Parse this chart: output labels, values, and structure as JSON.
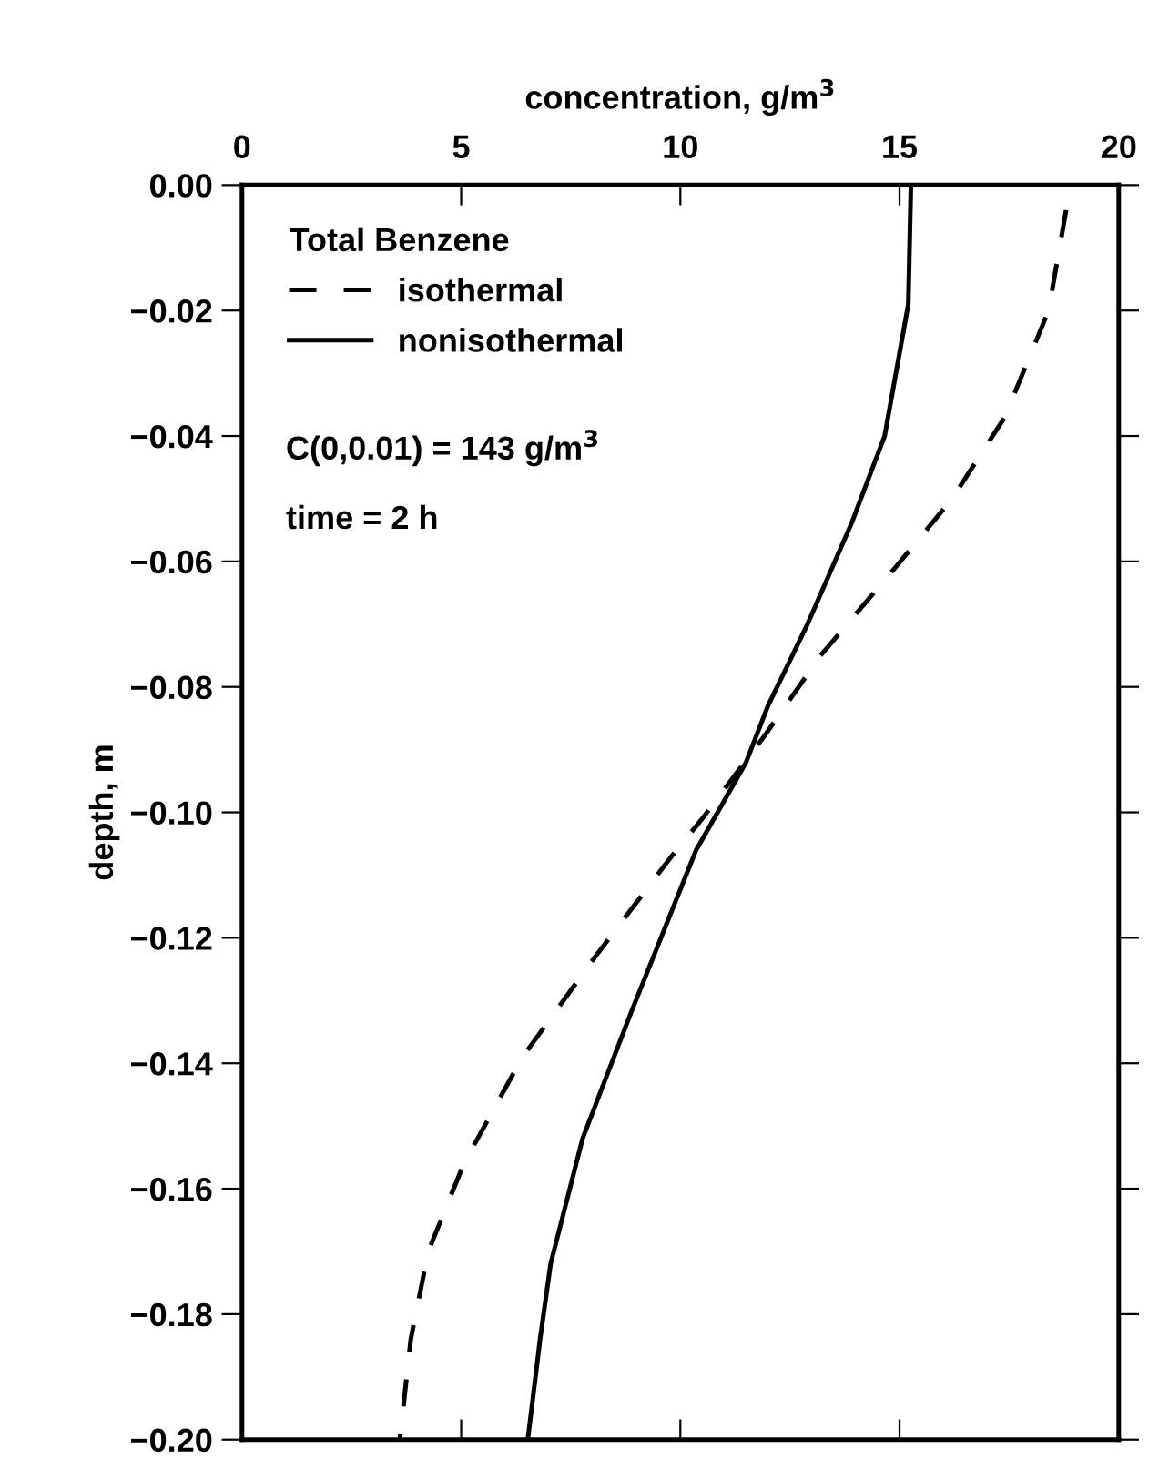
{
  "chart_data": {
    "type": "line",
    "xlabel": "concentration, g/m$^{3}$",
    "ylabel": "depth, m",
    "legend_title": "Total Benzene",
    "legend": "top left",
    "annotations": [
      "C(0,0.01) = 143 g/m$^{3}$",
      "time = 2 h"
    ],
    "xlim": [
      0,
      20
    ],
    "xticks": [
      0,
      5,
      10,
      15,
      20
    ],
    "ylim": [
      -0.2,
      0.0
    ],
    "yticks": [
      {
        "value": 0.0,
        "label": "0.00"
      },
      {
        "value": -0.02,
        "label": "−0.02"
      },
      {
        "value": -0.04,
        "label": "−0.04"
      },
      {
        "value": -0.06,
        "label": "−0.06"
      },
      {
        "value": -0.08,
        "label": "−0.08"
      },
      {
        "value": -0.1,
        "label": "−0.10"
      },
      {
        "value": -0.12,
        "label": "−0.12"
      },
      {
        "value": -0.14,
        "label": "−0.14"
      },
      {
        "value": -0.16,
        "label": "−0.16"
      },
      {
        "value": -0.18,
        "label": "−0.18"
      },
      {
        "value": -0.2,
        "label": "−0.20"
      }
    ],
    "grid": false,
    "series": [
      {
        "name": "isothermal",
        "color": "#000000",
        "line_style": "dashed",
        "x": [
          18.8,
          18.4,
          17.4,
          16.2,
          14.9,
          13.2,
          11.9,
          10.5,
          9.8,
          8.06,
          6.4,
          5.06,
          4.25,
          3.85,
          3.6
        ],
        "values": [
          -0.004,
          -0.02,
          -0.037,
          -0.05,
          -0.061,
          -0.075,
          -0.088,
          -0.101,
          -0.107,
          -0.123,
          -0.139,
          -0.156,
          -0.17,
          -0.184,
          -0.2
        ]
      },
      {
        "name": "nonisothermal",
        "color": "#000000",
        "line_style": "solid",
        "x": [
          15.26,
          15.2,
          14.66,
          13.9,
          12.9,
          12.0,
          11.5,
          10.36,
          8.87,
          7.77,
          7.04,
          6.8,
          6.52
        ],
        "values": [
          0.0,
          -0.019,
          -0.04,
          -0.054,
          -0.07,
          -0.083,
          -0.092,
          -0.106,
          -0.132,
          -0.152,
          -0.172,
          -0.184,
          -0.2
        ]
      }
    ]
  }
}
